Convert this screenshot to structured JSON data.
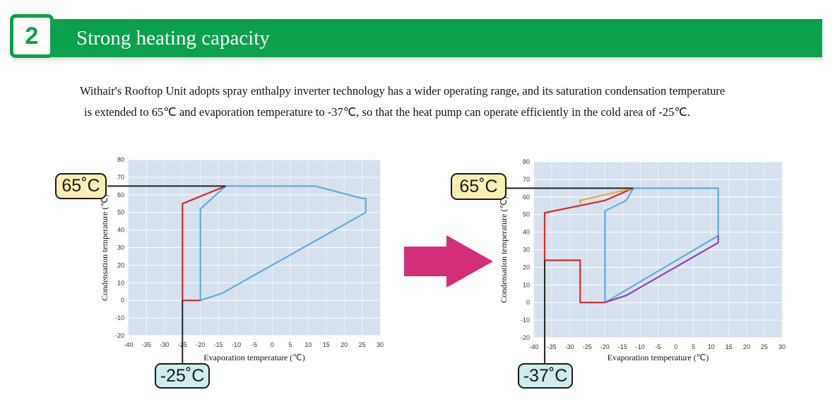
{
  "header": {
    "number": "2",
    "title": "Strong heating capacity",
    "color": "#0aa14a"
  },
  "description": {
    "line1": "Withair's Rooftop Unit adopts spray enthalpy inverter technology has a wider operating range, and its saturation condensation temperature",
    "line2": "is extended to 65℃ and evaporation temperature to -37℃, so that the heat pump can operate efficiently in the cold area of -25℃."
  },
  "arrow_color": "#d42e7a",
  "chart_data": [
    {
      "type": "line",
      "xlabel": "Evaporation temperature (℃)",
      "ylabel": "Condensation temperature (℃)",
      "xlim": [
        -40,
        30
      ],
      "ylim": [
        -20,
        80
      ],
      "xticks": [
        -40,
        -35,
        -30,
        -25,
        -20,
        -15,
        -10,
        -5,
        0,
        5,
        10,
        15,
        20,
        25,
        30
      ],
      "yticks": [
        -20,
        -10,
        0,
        10,
        20,
        30,
        40,
        50,
        60,
        70,
        80
      ],
      "grid": true,
      "series": [
        {
          "color": "#5aaee0",
          "x": [
            -13,
            12,
            25,
            26,
            26,
            -14,
            -20,
            -20,
            -13
          ],
          "y": [
            65,
            65,
            58,
            58,
            50,
            4,
            0,
            52,
            65
          ]
        },
        {
          "color": "#d42a2a",
          "x": [
            -13,
            -25,
            -25,
            -20
          ],
          "y": [
            65,
            55,
            0,
            0
          ]
        }
      ],
      "annotations": [
        {
          "label": "65˚C",
          "x": -40,
          "y": 65,
          "axis": "y"
        },
        {
          "label": "-25˚C",
          "x": -25,
          "y": -20,
          "axis": "x"
        }
      ]
    },
    {
      "type": "line",
      "xlabel": "Evaporation temperature (℃)",
      "ylabel": "Condensation temperature (℃)",
      "xlim": [
        -40,
        30
      ],
      "ylim": [
        -20,
        80
      ],
      "xticks": [
        -40,
        -35,
        -30,
        -25,
        -20,
        -15,
        -10,
        -5,
        0,
        5,
        10,
        15,
        20,
        25,
        30
      ],
      "yticks": [
        -20,
        -10,
        0,
        10,
        20,
        30,
        40,
        50,
        60,
        70,
        80
      ],
      "grid": true,
      "series": [
        {
          "color": "#5aaee0",
          "x": [
            -12,
            12,
            12,
            -20,
            -20,
            -14,
            -12
          ],
          "y": [
            65,
            65,
            38,
            0,
            52,
            58,
            65
          ]
        },
        {
          "color": "#d42a2a",
          "x": [
            -12,
            -20,
            -37,
            -37,
            -27,
            -27,
            -20
          ],
          "y": [
            65,
            58,
            51,
            24,
            24,
            0,
            0
          ]
        },
        {
          "color": "#e8a83a",
          "x": [
            -27,
            -27,
            -12
          ],
          "y": [
            56,
            58,
            65
          ]
        },
        {
          "color": "#9b3db0",
          "x": [
            -20,
            -14,
            12,
            12
          ],
          "y": [
            0,
            4,
            34,
            38
          ]
        }
      ],
      "annotations": [
        {
          "label": "65˚C",
          "x": -40,
          "y": 65,
          "axis": "y"
        },
        {
          "label": "-37˚C",
          "x": -37,
          "y": -20,
          "axis": "x"
        }
      ]
    }
  ]
}
